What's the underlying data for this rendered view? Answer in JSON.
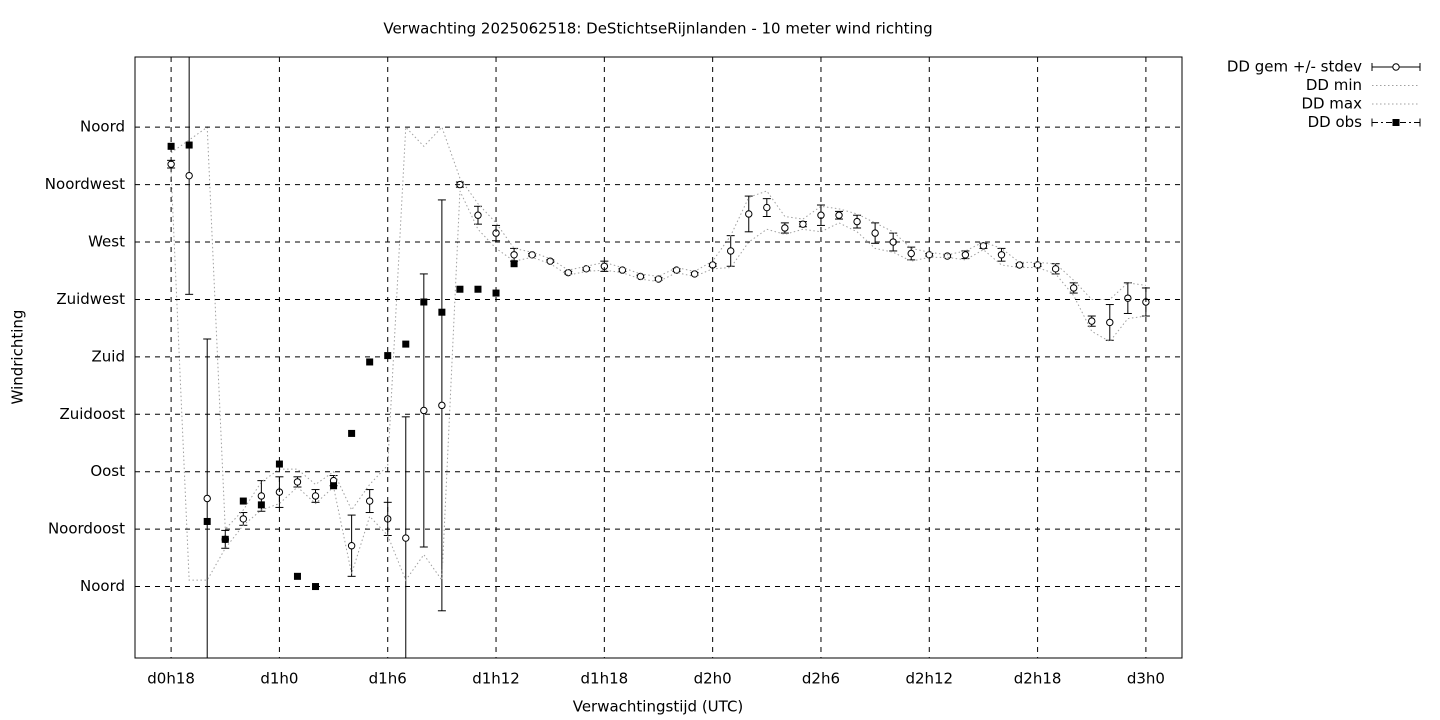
{
  "chart_data": {
    "type": "line",
    "title": "Verwachting 2025062518: DeStichtseRijnlanden - 10 meter wind richting",
    "x_label": "Verwachtingstijd (UTC)",
    "y_label": "Windrichting",
    "x": [
      18,
      19,
      20,
      21,
      22,
      23,
      24,
      25,
      26,
      27,
      28,
      29,
      30,
      31,
      32,
      33,
      34,
      35,
      36,
      37,
      38,
      39,
      40,
      41,
      42,
      43,
      44,
      45,
      46,
      47,
      48,
      49,
      50,
      51,
      52,
      53,
      54,
      55,
      56,
      57,
      58,
      59,
      60,
      61,
      62,
      63,
      64,
      65,
      66,
      67,
      68,
      69,
      70,
      71,
      72
    ],
    "xlim": [
      16,
      74
    ],
    "xticks": [
      {
        "value": 18,
        "label": "d0h18"
      },
      {
        "value": 24,
        "label": "d1h0"
      },
      {
        "value": 30,
        "label": "d1h6"
      },
      {
        "value": 36,
        "label": "d1h12"
      },
      {
        "value": 42,
        "label": "d1h18"
      },
      {
        "value": 48,
        "label": "d2h0"
      },
      {
        "value": 54,
        "label": "d2h6"
      },
      {
        "value": 60,
        "label": "d2h12"
      },
      {
        "value": 66,
        "label": "d2h18"
      },
      {
        "value": 72,
        "label": "d3h0"
      }
    ],
    "ylim": [
      -56,
      415
    ],
    "yticks": [
      {
        "value": 0,
        "label": "Noord"
      },
      {
        "value": 45,
        "label": "Noordoost"
      },
      {
        "value": 90,
        "label": "Oost"
      },
      {
        "value": 135,
        "label": "Zuidoost"
      },
      {
        "value": 180,
        "label": "Zuid"
      },
      {
        "value": 225,
        "label": "Zuidwest"
      },
      {
        "value": 270,
        "label": "West"
      },
      {
        "value": 315,
        "label": "Noordwest"
      },
      {
        "value": 360,
        "label": "Noord"
      }
    ],
    "grid": true,
    "legend": "outside-right",
    "series": [
      {
        "name": "DD gem +/- stdev",
        "style": "errorbars",
        "color": "#000000",
        "values": [
          331,
          322,
          69,
          37,
          53,
          71,
          74,
          82,
          71,
          83,
          32,
          67,
          53,
          38,
          138,
          142,
          315,
          291,
          277,
          260,
          260,
          255,
          246,
          249,
          251,
          248,
          243,
          241,
          248,
          245,
          252,
          263,
          292,
          297,
          281,
          284,
          291,
          291,
          286,
          277,
          270,
          261,
          260,
          259,
          260,
          267,
          260,
          252,
          252,
          249,
          234,
          208,
          207,
          226,
          223
        ],
        "errors": [
          3,
          93,
          125,
          7,
          5,
          12,
          12,
          4,
          5,
          4,
          24,
          9,
          13,
          95,
          107,
          161,
          2,
          7,
          6,
          5,
          1,
          1,
          1,
          1,
          4,
          1,
          1,
          1,
          1,
          1,
          1,
          12,
          14,
          7,
          4,
          2,
          8,
          3,
          5,
          8,
          7,
          5,
          1,
          1,
          3,
          2,
          5,
          1,
          1,
          4,
          4,
          4,
          14,
          12,
          11
        ]
      },
      {
        "name": "DD min",
        "style": "dotted",
        "color": "#a0a0a0",
        "values": [
          325,
          5,
          5,
          30,
          48,
          60,
          65,
          78,
          65,
          78,
          10,
          55,
          40,
          5,
          25,
          5,
          310,
          280,
          265,
          255,
          258,
          253,
          244,
          247,
          248,
          246,
          241,
          239,
          246,
          243,
          249,
          250,
          270,
          280,
          276,
          280,
          278,
          285,
          278,
          265,
          262,
          255,
          258,
          258,
          256,
          264,
          252,
          250,
          250,
          245,
          228,
          200,
          192,
          210,
          212
        ]
      },
      {
        "name": "DD max",
        "style": "dotted",
        "color": "#a0a0a0",
        "values": [
          340,
          350,
          360,
          45,
          60,
          82,
          92,
          92,
          80,
          90,
          60,
          80,
          95,
          360,
          345,
          360,
          320,
          300,
          285,
          265,
          262,
          257,
          248,
          251,
          254,
          250,
          245,
          243,
          250,
          247,
          255,
          275,
          305,
          310,
          290,
          288,
          298,
          296,
          292,
          285,
          278,
          265,
          262,
          260,
          263,
          270,
          265,
          254,
          254,
          253,
          240,
          225,
          225,
          238,
          236
        ]
      },
      {
        "name": "DD obs",
        "style": "points",
        "color": "#000000",
        "values": [
          345,
          346,
          51,
          37,
          67,
          64,
          96,
          8,
          0,
          79,
          120,
          176,
          181,
          190,
          223,
          215,
          233,
          233,
          230,
          253,
          null,
          null,
          null,
          null,
          null,
          null,
          null,
          null,
          null,
          null,
          null,
          null,
          null,
          null,
          null,
          null,
          null,
          null,
          null,
          null,
          null,
          null,
          null,
          null,
          null,
          null,
          null,
          null,
          null,
          null,
          null,
          null,
          null,
          null,
          null
        ]
      }
    ]
  }
}
